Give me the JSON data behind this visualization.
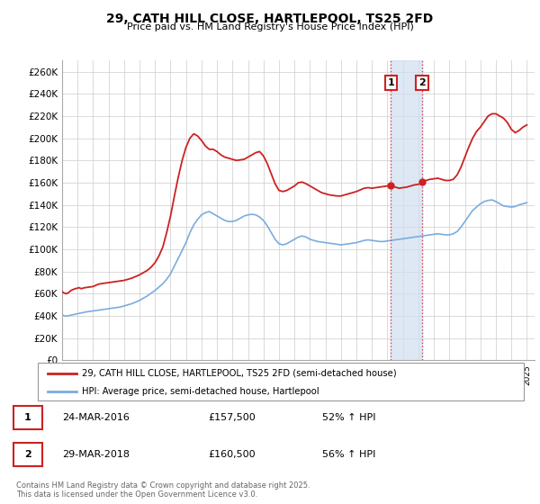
{
  "title": "29, CATH HILL CLOSE, HARTLEPOOL, TS25 2FD",
  "subtitle": "Price paid vs. HM Land Registry's House Price Index (HPI)",
  "ylim": [
    0,
    270000
  ],
  "yticks": [
    0,
    20000,
    40000,
    60000,
    80000,
    100000,
    120000,
    140000,
    160000,
    180000,
    200000,
    220000,
    240000,
    260000
  ],
  "ytick_labels": [
    "£0",
    "£20K",
    "£40K",
    "£60K",
    "£80K",
    "£100K",
    "£120K",
    "£140K",
    "£160K",
    "£180K",
    "£200K",
    "£220K",
    "£240K",
    "£260K"
  ],
  "hpi_color": "#7aaddd",
  "price_color": "#cc2222",
  "annotation_box_color": "#cc2222",
  "vertical_line_color": "#dd4444",
  "vertical_fill_color": "#d0dff0",
  "legend_label1": "29, CATH HILL CLOSE, HARTLEPOOL, TS25 2FD (semi-detached house)",
  "legend_label2": "HPI: Average price, semi-detached house, Hartlepool",
  "transaction1_label": "1",
  "transaction1_date": "24-MAR-2016",
  "transaction1_price": "£157,500",
  "transaction1_hpi": "52% ↑ HPI",
  "transaction1_year": 2016.23,
  "transaction1_value": 157500,
  "transaction2_label": "2",
  "transaction2_date": "29-MAR-2018",
  "transaction2_price": "£160,500",
  "transaction2_hpi": "56% ↑ HPI",
  "transaction2_year": 2018.24,
  "transaction2_value": 160500,
  "footer": "Contains HM Land Registry data © Crown copyright and database right 2025.\nThis data is licensed under the Open Government Licence v3.0.",
  "hpi_data": [
    [
      1995.0,
      41000
    ],
    [
      1995.08,
      40500
    ],
    [
      1995.17,
      40000
    ],
    [
      1995.25,
      39800
    ],
    [
      1995.33,
      40000
    ],
    [
      1995.42,
      40200
    ],
    [
      1995.5,
      40500
    ],
    [
      1995.58,
      40800
    ],
    [
      1995.67,
      41000
    ],
    [
      1995.75,
      41200
    ],
    [
      1995.83,
      41500
    ],
    [
      1996.0,
      42000
    ],
    [
      1996.08,
      42200
    ],
    [
      1996.17,
      42500
    ],
    [
      1996.25,
      42800
    ],
    [
      1996.33,
      43000
    ],
    [
      1996.5,
      43500
    ],
    [
      1996.75,
      44000
    ],
    [
      1997.0,
      44500
    ],
    [
      1997.25,
      45000
    ],
    [
      1997.5,
      45500
    ],
    [
      1997.75,
      46000
    ],
    [
      1998.0,
      46500
    ],
    [
      1998.25,
      47000
    ],
    [
      1998.5,
      47500
    ],
    [
      1998.75,
      48000
    ],
    [
      1999.0,
      49000
    ],
    [
      1999.25,
      50000
    ],
    [
      1999.5,
      51000
    ],
    [
      1999.75,
      52500
    ],
    [
      2000.0,
      54000
    ],
    [
      2000.25,
      56000
    ],
    [
      2000.5,
      58000
    ],
    [
      2000.75,
      60500
    ],
    [
      2001.0,
      63000
    ],
    [
      2001.25,
      66000
    ],
    [
      2001.5,
      69000
    ],
    [
      2001.75,
      73000
    ],
    [
      2002.0,
      78000
    ],
    [
      2002.25,
      85000
    ],
    [
      2002.5,
      92000
    ],
    [
      2002.75,
      99000
    ],
    [
      2003.0,
      106000
    ],
    [
      2003.25,
      115000
    ],
    [
      2003.5,
      122000
    ],
    [
      2003.75,
      127000
    ],
    [
      2004.0,
      131000
    ],
    [
      2004.25,
      133000
    ],
    [
      2004.5,
      134000
    ],
    [
      2004.75,
      132000
    ],
    [
      2005.0,
      130000
    ],
    [
      2005.25,
      128000
    ],
    [
      2005.5,
      126000
    ],
    [
      2005.75,
      125000
    ],
    [
      2006.0,
      125000
    ],
    [
      2006.25,
      126000
    ],
    [
      2006.5,
      128000
    ],
    [
      2006.75,
      130000
    ],
    [
      2007.0,
      131000
    ],
    [
      2007.25,
      131500
    ],
    [
      2007.5,
      131000
    ],
    [
      2007.75,
      129000
    ],
    [
      2008.0,
      126000
    ],
    [
      2008.25,
      121000
    ],
    [
      2008.5,
      115000
    ],
    [
      2008.75,
      109000
    ],
    [
      2009.0,
      105000
    ],
    [
      2009.25,
      104000
    ],
    [
      2009.5,
      105000
    ],
    [
      2009.75,
      107000
    ],
    [
      2010.0,
      109000
    ],
    [
      2010.25,
      111000
    ],
    [
      2010.5,
      112000
    ],
    [
      2010.75,
      111000
    ],
    [
      2011.0,
      109000
    ],
    [
      2011.25,
      108000
    ],
    [
      2011.5,
      107000
    ],
    [
      2011.75,
      106500
    ],
    [
      2012.0,
      106000
    ],
    [
      2012.25,
      105500
    ],
    [
      2012.5,
      105000
    ],
    [
      2012.75,
      104500
    ],
    [
      2013.0,
      104000
    ],
    [
      2013.25,
      104500
    ],
    [
      2013.5,
      105000
    ],
    [
      2013.75,
      105500
    ],
    [
      2014.0,
      106000
    ],
    [
      2014.25,
      107000
    ],
    [
      2014.5,
      108000
    ],
    [
      2014.75,
      108500
    ],
    [
      2015.0,
      108000
    ],
    [
      2015.25,
      107500
    ],
    [
      2015.5,
      107000
    ],
    [
      2015.75,
      107000
    ],
    [
      2016.0,
      107500
    ],
    [
      2016.25,
      108000
    ],
    [
      2016.5,
      108500
    ],
    [
      2016.75,
      109000
    ],
    [
      2017.0,
      109500
    ],
    [
      2017.25,
      110000
    ],
    [
      2017.5,
      110500
    ],
    [
      2017.75,
      111000
    ],
    [
      2018.0,
      111500
    ],
    [
      2018.25,
      112000
    ],
    [
      2018.5,
      112500
    ],
    [
      2018.75,
      113000
    ],
    [
      2019.0,
      113500
    ],
    [
      2019.25,
      114000
    ],
    [
      2019.5,
      113500
    ],
    [
      2019.75,
      113000
    ],
    [
      2020.0,
      113000
    ],
    [
      2020.25,
      114000
    ],
    [
      2020.5,
      116000
    ],
    [
      2020.75,
      120000
    ],
    [
      2021.0,
      125000
    ],
    [
      2021.25,
      130000
    ],
    [
      2021.5,
      135000
    ],
    [
      2021.75,
      138000
    ],
    [
      2022.0,
      141000
    ],
    [
      2022.25,
      143000
    ],
    [
      2022.5,
      144000
    ],
    [
      2022.75,
      144500
    ],
    [
      2023.0,
      143000
    ],
    [
      2023.25,
      141000
    ],
    [
      2023.5,
      139000
    ],
    [
      2023.75,
      138500
    ],
    [
      2024.0,
      138000
    ],
    [
      2024.25,
      138500
    ],
    [
      2024.5,
      140000
    ],
    [
      2024.75,
      141000
    ],
    [
      2025.0,
      142000
    ]
  ],
  "price_data": [
    [
      1995.0,
      62000
    ],
    [
      1995.08,
      61000
    ],
    [
      1995.17,
      60500
    ],
    [
      1995.25,
      60000
    ],
    [
      1995.33,
      60500
    ],
    [
      1995.42,
      61000
    ],
    [
      1995.5,
      62000
    ],
    [
      1995.58,
      63000
    ],
    [
      1995.67,
      63500
    ],
    [
      1995.75,
      64000
    ],
    [
      1995.83,
      64500
    ],
    [
      1996.0,
      65000
    ],
    [
      1996.08,
      65500
    ],
    [
      1996.17,
      65000
    ],
    [
      1996.25,
      64500
    ],
    [
      1996.33,
      65000
    ],
    [
      1996.5,
      65500
    ],
    [
      1996.75,
      66000
    ],
    [
      1997.0,
      66500
    ],
    [
      1997.08,
      67000
    ],
    [
      1997.17,
      67500
    ],
    [
      1997.25,
      68000
    ],
    [
      1997.33,
      68500
    ],
    [
      1997.5,
      69000
    ],
    [
      1997.75,
      69500
    ],
    [
      1998.0,
      70000
    ],
    [
      1998.25,
      70500
    ],
    [
      1998.5,
      71000
    ],
    [
      1998.75,
      71500
    ],
    [
      1999.0,
      72000
    ],
    [
      1999.25,
      73000
    ],
    [
      1999.5,
      74000
    ],
    [
      1999.75,
      75500
    ],
    [
      2000.0,
      77000
    ],
    [
      2000.25,
      79000
    ],
    [
      2000.5,
      81000
    ],
    [
      2000.75,
      84000
    ],
    [
      2001.0,
      88000
    ],
    [
      2001.25,
      94000
    ],
    [
      2001.5,
      102000
    ],
    [
      2001.75,
      115000
    ],
    [
      2002.0,
      130000
    ],
    [
      2002.25,
      148000
    ],
    [
      2002.5,
      165000
    ],
    [
      2002.75,
      180000
    ],
    [
      2003.0,
      192000
    ],
    [
      2003.25,
      200000
    ],
    [
      2003.5,
      204000
    ],
    [
      2003.75,
      202000
    ],
    [
      2004.0,
      198000
    ],
    [
      2004.25,
      193000
    ],
    [
      2004.5,
      190000
    ],
    [
      2004.75,
      190000
    ],
    [
      2005.0,
      188000
    ],
    [
      2005.25,
      185000
    ],
    [
      2005.5,
      183000
    ],
    [
      2005.75,
      182000
    ],
    [
      2006.0,
      181000
    ],
    [
      2006.25,
      180000
    ],
    [
      2006.5,
      180500
    ],
    [
      2006.75,
      181000
    ],
    [
      2007.0,
      183000
    ],
    [
      2007.25,
      185000
    ],
    [
      2007.5,
      187000
    ],
    [
      2007.75,
      188000
    ],
    [
      2008.0,
      184000
    ],
    [
      2008.25,
      177000
    ],
    [
      2008.5,
      168000
    ],
    [
      2008.75,
      159000
    ],
    [
      2009.0,
      153000
    ],
    [
      2009.25,
      152000
    ],
    [
      2009.5,
      153000
    ],
    [
      2009.75,
      155000
    ],
    [
      2010.0,
      157000
    ],
    [
      2010.25,
      160000
    ],
    [
      2010.5,
      160500
    ],
    [
      2010.75,
      159000
    ],
    [
      2011.0,
      157000
    ],
    [
      2011.25,
      155000
    ],
    [
      2011.5,
      153000
    ],
    [
      2011.75,
      151000
    ],
    [
      2012.0,
      150000
    ],
    [
      2012.25,
      149000
    ],
    [
      2012.5,
      148500
    ],
    [
      2012.75,
      148000
    ],
    [
      2013.0,
      148000
    ],
    [
      2013.25,
      149000
    ],
    [
      2013.5,
      150000
    ],
    [
      2013.75,
      151000
    ],
    [
      2014.0,
      152000
    ],
    [
      2014.25,
      153500
    ],
    [
      2014.5,
      155000
    ],
    [
      2014.75,
      155500
    ],
    [
      2015.0,
      155000
    ],
    [
      2015.25,
      155500
    ],
    [
      2015.5,
      156000
    ],
    [
      2015.75,
      156500
    ],
    [
      2016.0,
      157000
    ],
    [
      2016.08,
      157200
    ],
    [
      2016.17,
      157400
    ],
    [
      2016.23,
      157500
    ],
    [
      2016.33,
      157000
    ],
    [
      2016.5,
      156000
    ],
    [
      2016.75,
      155000
    ],
    [
      2017.0,
      155500
    ],
    [
      2017.25,
      156000
    ],
    [
      2017.5,
      157000
    ],
    [
      2017.75,
      158000
    ],
    [
      2018.0,
      158500
    ],
    [
      2018.17,
      159500
    ],
    [
      2018.24,
      160500
    ],
    [
      2018.33,
      161000
    ],
    [
      2018.5,
      162000
    ],
    [
      2018.75,
      163000
    ],
    [
      2019.0,
      163500
    ],
    [
      2019.25,
      164000
    ],
    [
      2019.5,
      163000
    ],
    [
      2019.75,
      162000
    ],
    [
      2020.0,
      162000
    ],
    [
      2020.25,
      163000
    ],
    [
      2020.5,
      167000
    ],
    [
      2020.75,
      174000
    ],
    [
      2021.0,
      183000
    ],
    [
      2021.25,
      192000
    ],
    [
      2021.5,
      200000
    ],
    [
      2021.75,
      206000
    ],
    [
      2022.0,
      210000
    ],
    [
      2022.25,
      215000
    ],
    [
      2022.5,
      220000
    ],
    [
      2022.75,
      222000
    ],
    [
      2023.0,
      222000
    ],
    [
      2023.25,
      220000
    ],
    [
      2023.5,
      218000
    ],
    [
      2023.75,
      214000
    ],
    [
      2024.0,
      208000
    ],
    [
      2024.25,
      205000
    ],
    [
      2024.5,
      207000
    ],
    [
      2024.75,
      210000
    ],
    [
      2025.0,
      212000
    ]
  ]
}
